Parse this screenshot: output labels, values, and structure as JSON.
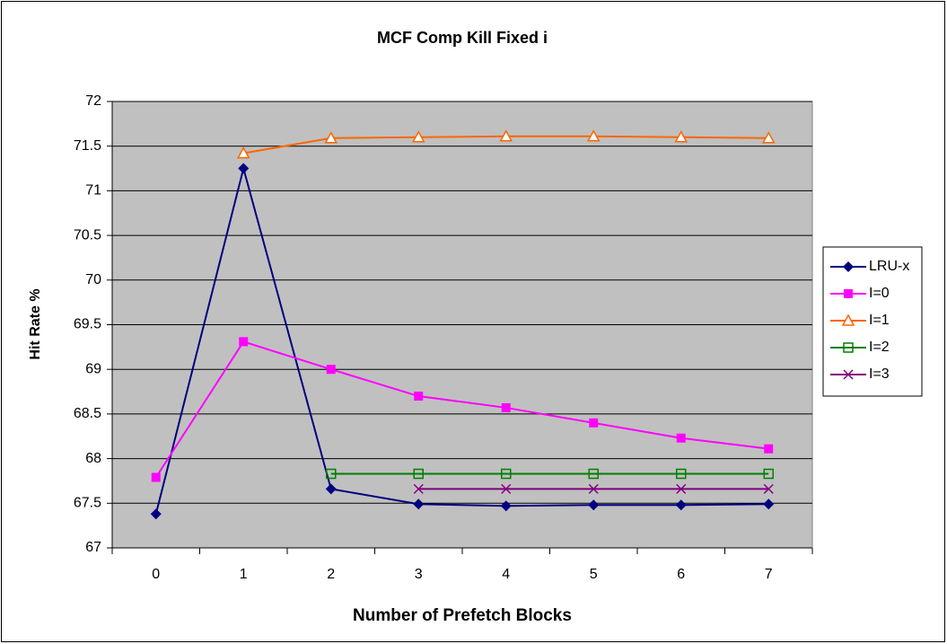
{
  "chart_data": {
    "type": "line",
    "title": "MCF Comp Kill Fixed i",
    "x_label": "Number of Prefetch Blocks",
    "y_label": "Hit Rate %",
    "categories": [
      "0",
      "1",
      "2",
      "3",
      "4",
      "5",
      "6",
      "7"
    ],
    "ylim": [
      67,
      72
    ],
    "yticks": [
      67,
      67.5,
      68,
      68.5,
      69,
      69.5,
      70,
      70.5,
      71,
      71.5,
      72
    ],
    "grid": true,
    "legend": "right",
    "series": [
      {
        "name": "LRU-x",
        "color": "#000080",
        "marker": "diamond",
        "values": [
          67.38,
          71.25,
          67.66,
          67.49,
          67.47,
          67.48,
          67.48,
          67.49
        ]
      },
      {
        "name": "I=0",
        "color": "#ff00ff",
        "marker": "square",
        "values": [
          67.79,
          69.31,
          69.0,
          68.7,
          68.57,
          68.4,
          68.23,
          68.11
        ]
      },
      {
        "name": "I=1",
        "color": "#ff6600",
        "marker": "triangle-open",
        "values": [
          null,
          71.42,
          71.59,
          71.6,
          71.61,
          71.61,
          71.6,
          71.59
        ]
      },
      {
        "name": "I=2",
        "color": "#008000",
        "marker": "square-open",
        "values": [
          null,
          null,
          67.83,
          67.83,
          67.83,
          67.83,
          67.83,
          67.83
        ]
      },
      {
        "name": "I=3",
        "color": "#800080",
        "marker": "x",
        "values": [
          null,
          null,
          null,
          67.66,
          67.66,
          67.66,
          67.66,
          67.66
        ]
      }
    ]
  }
}
